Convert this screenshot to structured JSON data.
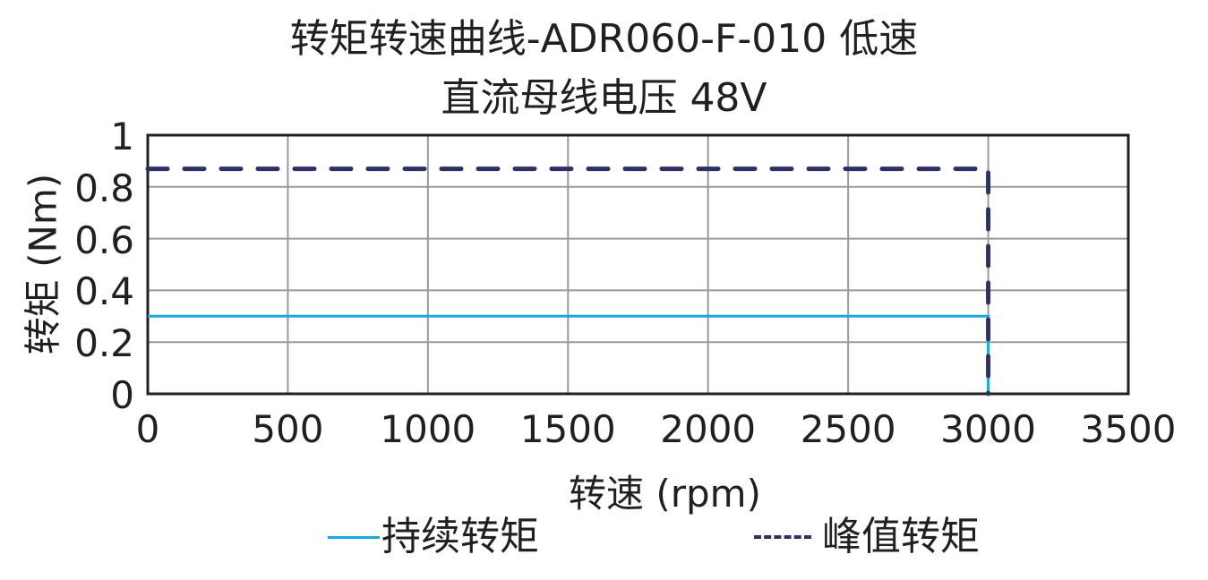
{
  "chart_data": {
    "type": "line",
    "title": "转矩转速曲线-ADR060-F-010 低速",
    "subtitle": "直流母线电压 48V",
    "xlabel": "转速 (rpm)",
    "ylabel": "转矩 (Nm)",
    "xlim": [
      0,
      3500
    ],
    "ylim": [
      0,
      1
    ],
    "x_ticks": [
      "0",
      "500",
      "1000",
      "1500",
      "2000",
      "2500",
      "3000",
      "3500"
    ],
    "y_ticks": [
      "0",
      "0.2",
      "0.4",
      "0.6",
      "0.8",
      "1"
    ],
    "grid": true,
    "legend_position": "bottom",
    "series": [
      {
        "name": "持续转矩",
        "style": "solid",
        "color": "#1ba8e0",
        "x": [
          0,
          3000,
          3000
        ],
        "y": [
          0.3,
          0.3,
          0
        ]
      },
      {
        "name": "峰值转矩",
        "style": "dashed",
        "color": "#2e3166",
        "x": [
          0,
          3000,
          3000
        ],
        "y": [
          0.87,
          0.87,
          0
        ]
      }
    ]
  },
  "legend": {
    "continuous": "持续转矩",
    "peak": "峰值转矩"
  }
}
